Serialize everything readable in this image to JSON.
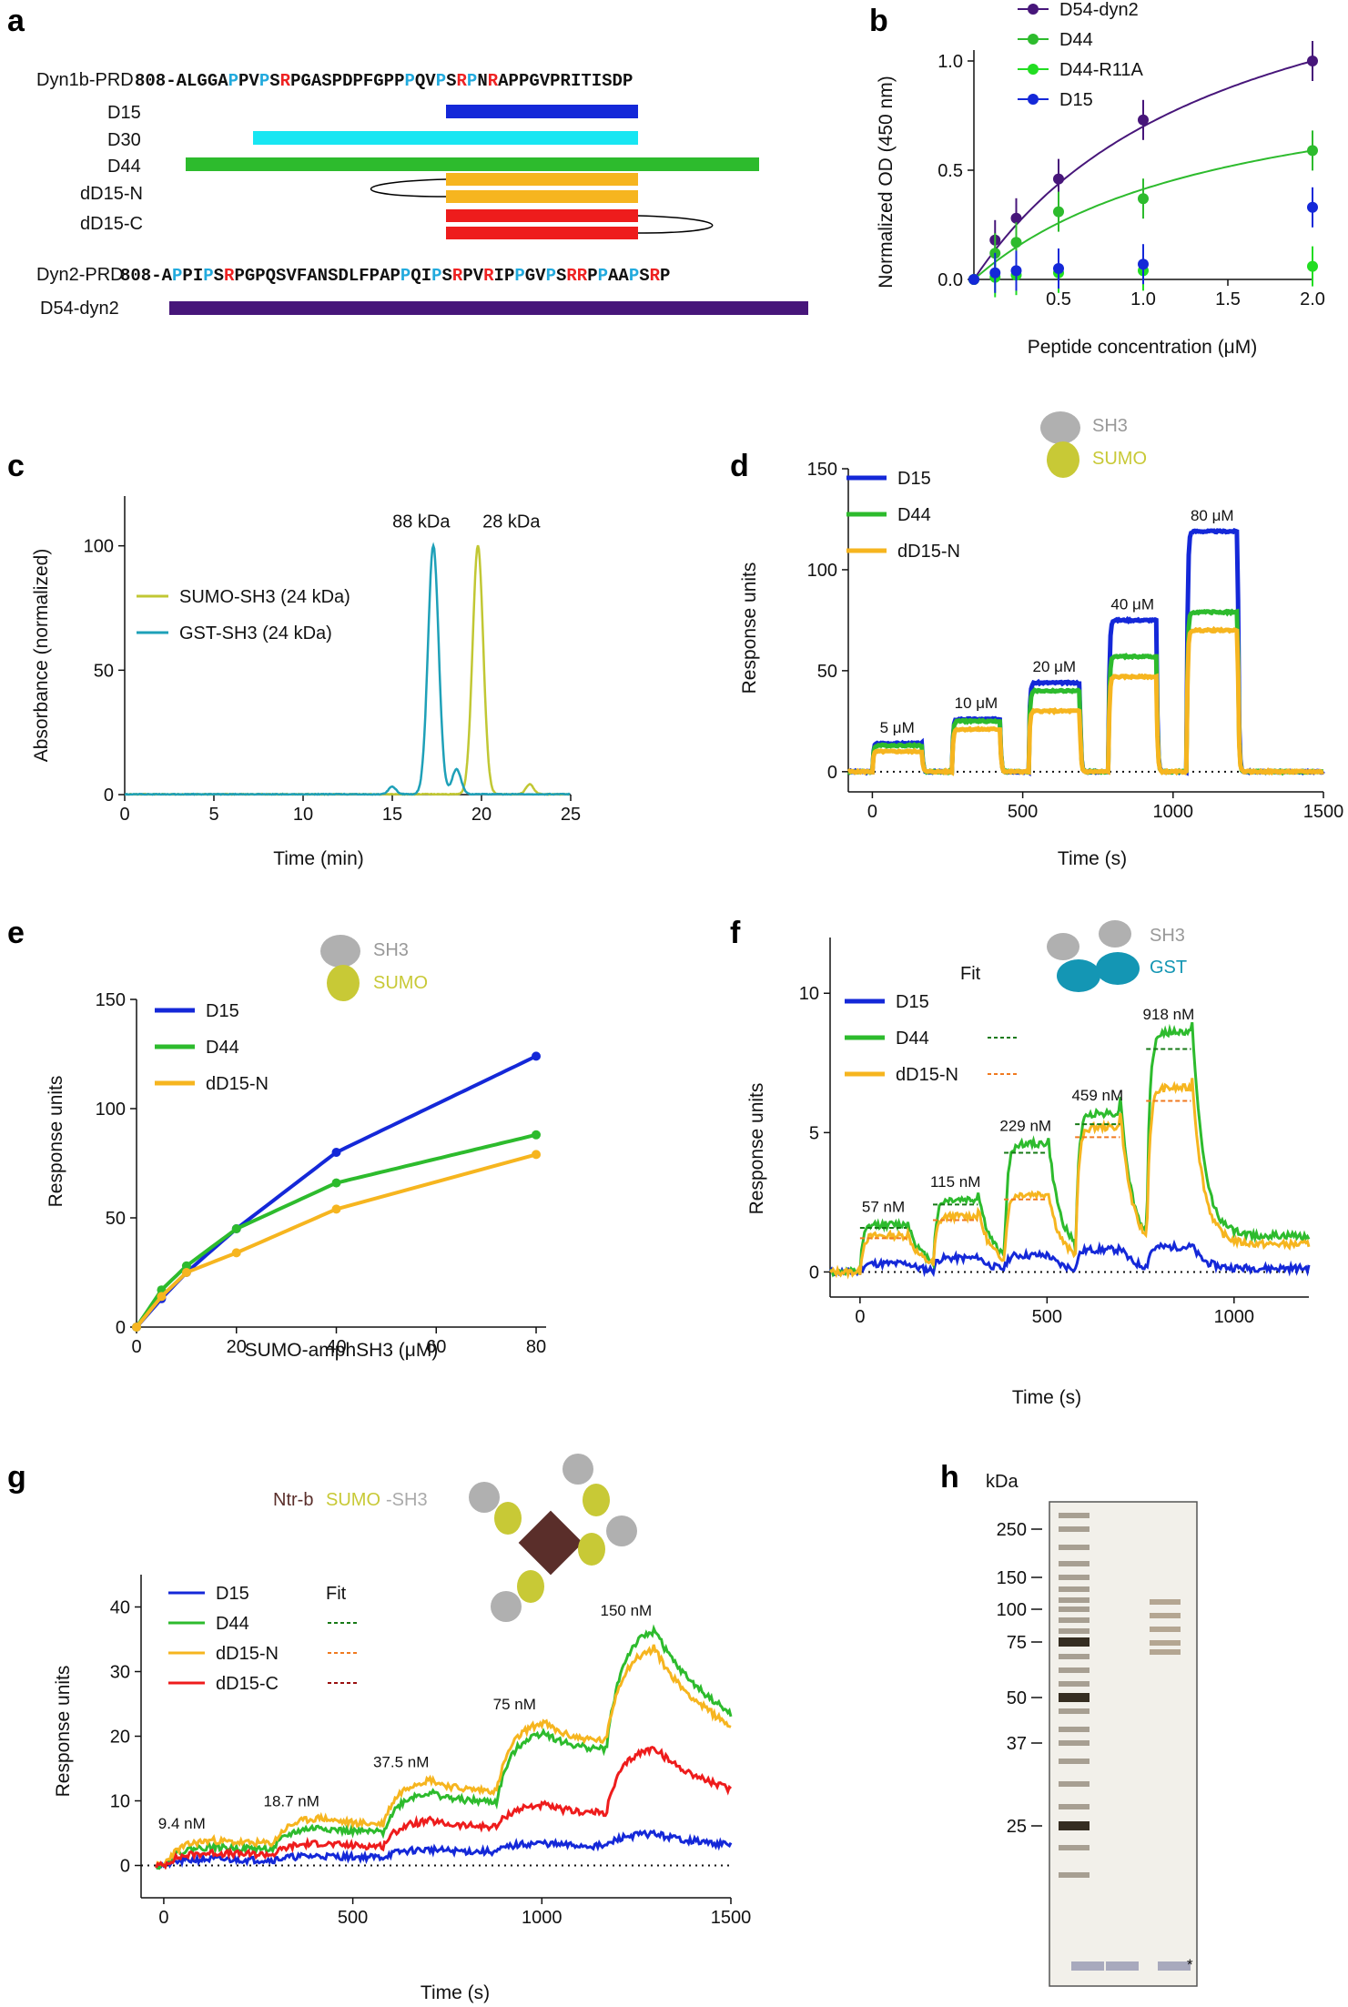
{
  "colors": {
    "blue": "#1428d8",
    "green": "#2dbb2d",
    "yellow": "#f6b51f",
    "red": "#ee1c1c",
    "purple": "#47167a",
    "cyan": "#18e6f2",
    "brightgreen": "#22dd22",
    "olive": "#c1c733",
    "teal": "#1ea0b8",
    "gray": "#aaaaaa",
    "sumo": "#c8c936",
    "gst": "#1496b4",
    "ntr": "#5a2e2a",
    "pro_blue": "#22aadd",
    "arg_red": "#ee2222"
  },
  "panels": {
    "a": {
      "letter": "a",
      "dyn1b_name": "Dyn1b-PRD",
      "dyn1b_seq": [
        {
          "t": "808-ALGGA",
          "c": "k"
        },
        {
          "t": "P",
          "c": "b"
        },
        {
          "t": "PV",
          "c": "k"
        },
        {
          "t": "P",
          "c": "b"
        },
        {
          "t": "S",
          "c": "k"
        },
        {
          "t": "R",
          "c": "r"
        },
        {
          "t": "PGASPDPFGPP",
          "c": "k"
        },
        {
          "t": "P",
          "c": "b"
        },
        {
          "t": "QV",
          "c": "k"
        },
        {
          "t": "P",
          "c": "b"
        },
        {
          "t": "S",
          "c": "k"
        },
        {
          "t": "R",
          "c": "r"
        },
        {
          "t": "P",
          "c": "b"
        },
        {
          "t": "N",
          "c": "k"
        },
        {
          "t": "R",
          "c": "r"
        },
        {
          "t": "APPGVPRITISDP",
          "c": "k"
        }
      ],
      "dyn2_name": "Dyn2-PRD",
      "dyn2_seq": [
        {
          "t": "808-A",
          "c": "k"
        },
        {
          "t": "P",
          "c": "b"
        },
        {
          "t": "PI",
          "c": "k"
        },
        {
          "t": "P",
          "c": "b"
        },
        {
          "t": "S",
          "c": "k"
        },
        {
          "t": "R",
          "c": "r"
        },
        {
          "t": "PGPQSVFANSDLFPAP",
          "c": "k"
        },
        {
          "t": "P",
          "c": "b"
        },
        {
          "t": "QI",
          "c": "k"
        },
        {
          "t": "P",
          "c": "b"
        },
        {
          "t": "S",
          "c": "k"
        },
        {
          "t": "R",
          "c": "r"
        },
        {
          "t": "PV",
          "c": "k"
        },
        {
          "t": "R",
          "c": "r"
        },
        {
          "t": "IP",
          "c": "k"
        },
        {
          "t": "P",
          "c": "b"
        },
        {
          "t": "GV",
          "c": "k"
        },
        {
          "t": "P",
          "c": "b"
        },
        {
          "t": "S",
          "c": "k"
        },
        {
          "t": "RR",
          "c": "r"
        },
        {
          "t": "P",
          "c": "k"
        },
        {
          "t": "P",
          "c": "b"
        },
        {
          "t": "AA",
          "c": "k"
        },
        {
          "t": "P",
          "c": "b"
        },
        {
          "t": "S",
          "c": "k"
        },
        {
          "t": "R",
          "c": "r"
        },
        {
          "t": "P",
          "c": "k"
        }
      ],
      "peptides": [
        {
          "name": "D15",
          "color": "blue"
        },
        {
          "name": "D30",
          "color": "cyan"
        },
        {
          "name": "D44",
          "color": "green"
        },
        {
          "name": "dD15-N",
          "color": "yellow"
        },
        {
          "name": "dD15-C",
          "color": "red"
        },
        {
          "name": "D54-dyn2",
          "color": "purple"
        }
      ]
    },
    "b": {
      "letter": "b",
      "chart_data": {
        "type": "scatter",
        "title": "",
        "xlabel": "Peptide concentration (μM)",
        "ylabel": "Normalized OD (450 nm)",
        "xlim": [
          0,
          2.0
        ],
        "ylim": [
          0,
          1.0
        ],
        "xticks": [
          "0.5",
          "1.0",
          "1.5",
          "2.0"
        ],
        "yticks": [
          "0.0",
          "0.5",
          "1.0"
        ],
        "series": [
          {
            "name": "D54-dyn2",
            "color": "purple",
            "x": [
              0,
              0.125,
              0.25,
              0.5,
              1.0,
              2.0
            ],
            "y": [
              0,
              0.18,
              0.28,
              0.46,
              0.73,
              1.0
            ],
            "fit": true
          },
          {
            "name": "D44",
            "color": "green",
            "x": [
              0,
              0.125,
              0.25,
              0.5,
              1.0,
              2.0
            ],
            "y": [
              0,
              0.12,
              0.17,
              0.31,
              0.37,
              0.59
            ],
            "fit": true
          },
          {
            "name": "D44-R11A",
            "color": "brightgreen",
            "x": [
              0,
              0.125,
              0.25,
              0.5,
              1.0,
              2.0
            ],
            "y": [
              0,
              0.01,
              0.02,
              0.03,
              0.04,
              0.06
            ],
            "fit": false
          },
          {
            "name": "D15",
            "color": "blue",
            "x": [
              0,
              0.125,
              0.25,
              0.5,
              1.0,
              2.0
            ],
            "y": [
              0,
              0.03,
              0.04,
              0.05,
              0.07,
              0.33
            ],
            "fit": false
          }
        ]
      }
    },
    "c": {
      "letter": "c",
      "chart_data": {
        "type": "line",
        "xlabel": "Time (min)",
        "ylabel": "Absorbance (normalized)",
        "xlim": [
          0,
          25
        ],
        "ylim": [
          0,
          120
        ],
        "xticks": [
          "0",
          "5",
          "10",
          "15",
          "20",
          "25"
        ],
        "yticks": [
          "0",
          "50",
          "100"
        ],
        "series": [
          {
            "name": "SUMO-SH3 (24 kDa)",
            "color": "olive",
            "peak_time": 19.8,
            "peak_value": 100,
            "peak_label": "28 kDa"
          },
          {
            "name": "GST-SH3 (24 kDa)",
            "color": "teal",
            "peak_time": 17.3,
            "peak_value": 100,
            "peak_label": "88 kDa"
          }
        ]
      }
    },
    "d": {
      "letter": "d",
      "schematic": {
        "sh3": "SH3",
        "sumo": "SUMO"
      },
      "chart_data": {
        "type": "line",
        "xlabel": "Time (s)",
        "ylabel": "Response units",
        "xlim": [
          -80,
          1500
        ],
        "ylim": [
          -10,
          150
        ],
        "xticks": [
          "0",
          "500",
          "1000",
          "1500"
        ],
        "yticks": [
          "0",
          "50",
          "100",
          "150"
        ],
        "injections": [
          {
            "start": 0,
            "end": 165,
            "label": "5 μM"
          },
          {
            "start": 265,
            "end": 425,
            "label": "10 μM"
          },
          {
            "start": 520,
            "end": 690,
            "label": "20 μM"
          },
          {
            "start": 785,
            "end": 945,
            "label": "40 μM"
          },
          {
            "start": 1045,
            "end": 1215,
            "label": "80 μM"
          }
        ],
        "series": [
          {
            "name": "D15",
            "color": "blue",
            "levels": [
              14,
              26,
              44,
              75,
              119
            ]
          },
          {
            "name": "D44",
            "color": "green",
            "levels": [
              13,
              25,
              40,
              57,
              79
            ]
          },
          {
            "name": "dD15-N",
            "color": "yellow",
            "levels": [
              10,
              21,
              30,
              47,
              70
            ]
          }
        ]
      }
    },
    "e": {
      "letter": "e",
      "schematic": {
        "sh3": "SH3",
        "sumo": "SUMO"
      },
      "chart_data": {
        "type": "scatter",
        "xlabel": "SUMO-amphSH3 (μM)",
        "ylabel": "Response units",
        "xlim": [
          0,
          82
        ],
        "ylim": [
          0,
          150
        ],
        "xticks": [
          "0",
          "20",
          "40",
          "60",
          "80"
        ],
        "yticks": [
          "0",
          "50",
          "100",
          "150"
        ],
        "series": [
          {
            "name": "D15",
            "color": "blue",
            "x": [
              0,
              5,
              10,
              20,
              40,
              80
            ],
            "y": [
              0,
              13,
              25,
              45,
              80,
              124
            ]
          },
          {
            "name": "D44",
            "color": "green",
            "x": [
              0,
              5,
              10,
              20,
              40,
              80
            ],
            "y": [
              0,
              17,
              28,
              45,
              66,
              88
            ]
          },
          {
            "name": "dD15-N",
            "color": "yellow",
            "x": [
              0,
              5,
              10,
              20,
              40,
              80
            ],
            "y": [
              0,
              14,
              25,
              34,
              54,
              79
            ]
          }
        ]
      }
    },
    "f": {
      "letter": "f",
      "schematic": {
        "sh3": "SH3",
        "gst": "GST"
      },
      "fit_label": "Fit",
      "chart_data": {
        "type": "line",
        "xlabel": "Time (s)",
        "ylabel": "Response units",
        "xlim": [
          -80,
          1200
        ],
        "ylim": [
          -0.9,
          12
        ],
        "xticks": [
          "0",
          "500",
          "1000"
        ],
        "yticks": [
          "0",
          "5",
          "10"
        ],
        "injections": [
          {
            "start": 0,
            "end": 125,
            "label": "57 nM"
          },
          {
            "start": 195,
            "end": 315,
            "label": "115 nM"
          },
          {
            "start": 385,
            "end": 500,
            "label": "229 nM"
          },
          {
            "start": 575,
            "end": 695,
            "label": "459 nM"
          },
          {
            "start": 765,
            "end": 885,
            "label": "918 nM"
          }
        ],
        "series": [
          {
            "name": "D15",
            "color": "blue",
            "levels": [
              0.3,
              0.5,
              0.6,
              0.8,
              0.9
            ],
            "fit": false
          },
          {
            "name": "D44",
            "color": "green",
            "levels": [
              1.7,
              2.6,
              4.6,
              5.7,
              8.6
            ],
            "fit": true
          },
          {
            "name": "dD15-N",
            "color": "yellow",
            "levels": [
              1.3,
              2.0,
              2.8,
              5.2,
              6.6
            ],
            "fit": true
          }
        ]
      }
    },
    "g": {
      "letter": "g",
      "schematic": {
        "ntr": "Ntr-b",
        "sumo": "SUMO",
        "sh3": "-SH3"
      },
      "fit_label": "Fit",
      "chart_data": {
        "type": "line",
        "xlabel": "Time (s)",
        "ylabel": "Response units",
        "xlim": [
          -60,
          1500
        ],
        "ylim": [
          -5,
          45
        ],
        "xticks": [
          "0",
          "500",
          "1000",
          "1500"
        ],
        "yticks": [
          "0",
          "10",
          "20",
          "30",
          "40"
        ],
        "injections": [
          {
            "start": 0,
            "time": 120,
            "label": "9.4 nM"
          },
          {
            "start": 290,
            "time": 410,
            "label": "18.7 nM"
          },
          {
            "start": 580,
            "time": 700,
            "label": "37.5 nM"
          },
          {
            "start": 880,
            "time": 1000,
            "label": "75 nM"
          },
          {
            "start": 1170,
            "time": 1295,
            "label": "150 nM"
          }
        ],
        "series": [
          {
            "name": "D15",
            "color": "blue",
            "peaks": [
              1,
              1.5,
              2.5,
              3.5,
              5
            ]
          },
          {
            "name": "D44",
            "color": "green",
            "peaks": [
              3,
              6,
              11.5,
              21,
              37
            ]
          },
          {
            "name": "dD15-N",
            "color": "yellow",
            "peaks": [
              4,
              7.5,
              13.5,
              22.5,
              34
            ]
          },
          {
            "name": "dD15-C",
            "color": "red",
            "peaks": [
              2,
              3.5,
              7,
              9.5,
              18.5
            ]
          }
        ]
      }
    },
    "h": {
      "letter": "h",
      "unit": "kDa",
      "markers": [
        "250",
        "150",
        "100",
        "75",
        "50",
        "37",
        "25"
      ],
      "asterisk": "*"
    }
  }
}
